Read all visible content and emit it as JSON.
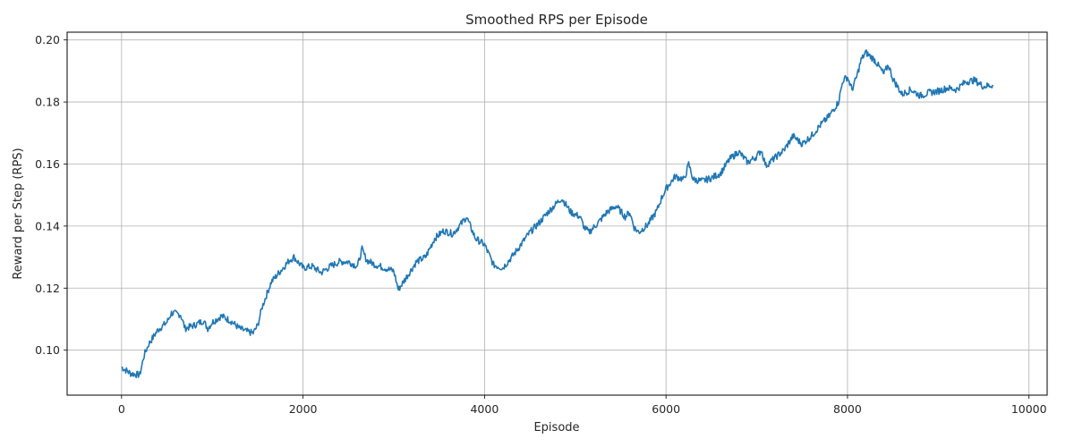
{
  "chart_data": {
    "type": "line",
    "title": "Smoothed RPS per Episode",
    "xlabel": "Episode",
    "ylabel": "Reward per Step (RPS)",
    "xlim": [
      -600,
      10200
    ],
    "ylim": [
      0.0855,
      0.2025
    ],
    "xticks": [
      0,
      2000,
      4000,
      6000,
      8000,
      10000
    ],
    "xtick_labels": [
      "0",
      "2000",
      "4000",
      "6000",
      "8000",
      "10000"
    ],
    "yticks": [
      0.1,
      0.12,
      0.14,
      0.16,
      0.18,
      0.2
    ],
    "ytick_labels": [
      "0.10",
      "0.12",
      "0.14",
      "0.16",
      "0.18",
      "0.20"
    ],
    "grid": true,
    "line_color": "#1f77b4",
    "series": [
      {
        "x": [
          0,
          100,
          200,
          250,
          300,
          400,
          500,
          550,
          650,
          700,
          800,
          900,
          950,
          1000,
          1100,
          1200,
          1300,
          1380,
          1450,
          1500,
          1550,
          1650,
          1750,
          1850,
          1900,
          2000,
          2100,
          2200,
          2300,
          2400,
          2500,
          2600,
          2650,
          2700,
          2800,
          2900,
          3000,
          3050,
          3150,
          3250,
          3350,
          3450,
          3550,
          3650,
          3750,
          3800,
          3900,
          4000,
          4100,
          4200,
          4300,
          4400,
          4500,
          4600,
          4700,
          4800,
          4850,
          4950,
          5050,
          5100,
          5150,
          5250,
          5350,
          5450,
          5550,
          5600,
          5650,
          5700,
          5800,
          5900,
          5950,
          6000,
          6100,
          6200,
          6250,
          6300,
          6400,
          6500,
          6600,
          6700,
          6800,
          6900,
          7000,
          7050,
          7100,
          7200,
          7300,
          7400,
          7500,
          7600,
          7700,
          7800,
          7900,
          7950,
          8000,
          8050,
          8100,
          8150,
          8200,
          8300,
          8400,
          8450,
          8500,
          8600,
          8700,
          8800,
          8900,
          9000,
          9100,
          9200,
          9300,
          9400,
          9500,
          9600
        ],
        "y": [
          0.0945,
          0.0925,
          0.092,
          0.0985,
          0.102,
          0.1065,
          0.109,
          0.112,
          0.1115,
          0.107,
          0.108,
          0.1095,
          0.107,
          0.109,
          0.111,
          0.1095,
          0.107,
          0.106,
          0.1055,
          0.108,
          0.114,
          0.122,
          0.1255,
          0.129,
          0.13,
          0.1265,
          0.127,
          0.125,
          0.127,
          0.1285,
          0.1285,
          0.127,
          0.1325,
          0.129,
          0.1275,
          0.1265,
          0.1255,
          0.1195,
          0.124,
          0.1285,
          0.13,
          0.136,
          0.1385,
          0.1375,
          0.141,
          0.143,
          0.136,
          0.134,
          0.1275,
          0.1265,
          0.13,
          0.134,
          0.138,
          0.141,
          0.1445,
          0.1475,
          0.149,
          0.1445,
          0.143,
          0.1395,
          0.138,
          0.141,
          0.1445,
          0.1465,
          0.143,
          0.1445,
          0.1395,
          0.138,
          0.1405,
          0.145,
          0.149,
          0.152,
          0.156,
          0.155,
          0.16,
          0.155,
          0.1545,
          0.1555,
          0.157,
          0.1615,
          0.164,
          0.1605,
          0.1625,
          0.1645,
          0.1595,
          0.162,
          0.1645,
          0.169,
          0.1665,
          0.169,
          0.1725,
          0.1755,
          0.18,
          0.187,
          0.188,
          0.184,
          0.188,
          0.1935,
          0.196,
          0.1935,
          0.189,
          0.192,
          0.1875,
          0.1825,
          0.184,
          0.182,
          0.183,
          0.1835,
          0.1845,
          0.184,
          0.1865,
          0.187,
          0.185,
          0.1855
        ]
      }
    ]
  }
}
